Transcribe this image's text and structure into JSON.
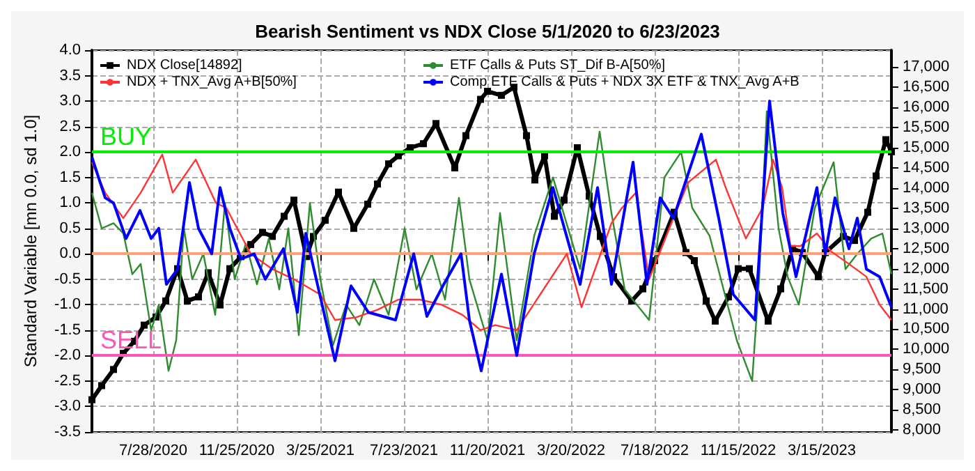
{
  "chart_data": {
    "type": "line",
    "title": "Bearish Sentiment vs NDX Close 5/1/2020 to 6/23/2023",
    "ylabel": "Standard Variable [mn 0.0, sd 1.0]",
    "xlim": [
      "2020-05-01",
      "2023-06-23"
    ],
    "xticks": [
      {
        "value": "2020-07-28",
        "label": "7/28/2020"
      },
      {
        "value": "2020-11-25",
        "label": "11/25/2020"
      },
      {
        "value": "2021-03-25",
        "label": "3/25/2021"
      },
      {
        "value": "2021-07-23",
        "label": "7/23/2021"
      },
      {
        "value": "2021-11-20",
        "label": "11/20/2021"
      },
      {
        "value": "2022-03-20",
        "label": "3/20/2022"
      },
      {
        "value": "2022-07-18",
        "label": "7/18/2022"
      },
      {
        "value": "2022-11-15",
        "label": "11/15/2022"
      },
      {
        "value": "2023-03-15",
        "label": "3/15/2023"
      }
    ],
    "ylim": [
      -3.5,
      4.0
    ],
    "yticks": [
      {
        "value": -3.5,
        "label": "-3.5"
      },
      {
        "value": -3,
        "label": "-3.0"
      },
      {
        "value": -2.5,
        "label": "-2.5"
      },
      {
        "value": -2,
        "label": "-2.0"
      },
      {
        "value": -1.5,
        "label": "-1.5"
      },
      {
        "value": -1,
        "label": "-1.0"
      },
      {
        "value": -0.5,
        "label": "-0.5"
      },
      {
        "value": 0,
        "label": "0.0"
      },
      {
        "value": 0.5,
        "label": "0.5"
      },
      {
        "value": 1,
        "label": "1.0"
      },
      {
        "value": 1.5,
        "label": "1.5"
      },
      {
        "value": 2,
        "label": "2.0"
      },
      {
        "value": 2.5,
        "label": "2.5"
      },
      {
        "value": 3,
        "label": "3.0"
      },
      {
        "value": 3.5,
        "label": "3.5"
      },
      {
        "value": 4,
        "label": "4.0"
      }
    ],
    "y2lim": [
      7950,
      17420
    ],
    "y2ticks": [
      {
        "value": 8000,
        "label": "8,000"
      },
      {
        "value": 8500,
        "label": "8,500"
      },
      {
        "value": 9000,
        "label": "9,000"
      },
      {
        "value": 9500,
        "label": "9,500"
      },
      {
        "value": 10000,
        "label": "10,000"
      },
      {
        "value": 10500,
        "label": "10,500"
      },
      {
        "value": 11000,
        "label": "11,000"
      },
      {
        "value": 11500,
        "label": "11,500"
      },
      {
        "value": 12000,
        "label": "12,000"
      },
      {
        "value": 12500,
        "label": "12,500"
      },
      {
        "value": 13000,
        "label": "13,000"
      },
      {
        "value": 13500,
        "label": "13,500"
      },
      {
        "value": 14000,
        "label": "14,000"
      },
      {
        "value": 14500,
        "label": "14,500"
      },
      {
        "value": 15000,
        "label": "15,000"
      },
      {
        "value": 15500,
        "label": "15,500"
      },
      {
        "value": 16000,
        "label": "16,000"
      },
      {
        "value": 16500,
        "label": "16,500"
      },
      {
        "value": 17000,
        "label": "17,000"
      }
    ],
    "grid": true,
    "legend": "top left",
    "ref_lines": [
      {
        "axis": "y",
        "value": 2,
        "label": "BUY",
        "color": "#00ee00"
      },
      {
        "axis": "y",
        "value": 0,
        "color": "#ffa07a"
      },
      {
        "axis": "y",
        "value": -2,
        "label": "SELL",
        "color": "#ff55bb"
      }
    ],
    "series": [
      {
        "name": "NDX Close[14892]",
        "color": "#000000",
        "axis": "y2",
        "marker": "square",
        "x": [
          "2020-05-01",
          "2020-05-15",
          "2020-06-01",
          "2020-06-15",
          "2020-07-01",
          "2020-07-15",
          "2020-08-01",
          "2020-08-15",
          "2020-09-01",
          "2020-09-15",
          "2020-10-01",
          "2020-10-15",
          "2020-11-01",
          "2020-11-15",
          "2020-12-01",
          "2020-12-15",
          "2021-01-01",
          "2021-01-15",
          "2021-02-01",
          "2021-02-15",
          "2021-03-05",
          "2021-03-15",
          "2021-04-01",
          "2021-04-20",
          "2021-05-12",
          "2021-06-01",
          "2021-06-15",
          "2021-07-01",
          "2021-07-15",
          "2021-08-01",
          "2021-08-20",
          "2021-09-07",
          "2021-10-04",
          "2021-10-20",
          "2021-11-10",
          "2021-11-20",
          "2021-12-10",
          "2021-12-28",
          "2022-01-15",
          "2022-01-27",
          "2022-02-10",
          "2022-02-24",
          "2022-03-10",
          "2022-03-29",
          "2022-04-15",
          "2022-05-01",
          "2022-05-20",
          "2022-06-15",
          "2022-07-01",
          "2022-07-18",
          "2022-08-15",
          "2022-09-01",
          "2022-09-13",
          "2022-09-30",
          "2022-10-13",
          "2022-11-01",
          "2022-11-15",
          "2022-12-01",
          "2022-12-28",
          "2023-01-15",
          "2023-02-01",
          "2023-02-15",
          "2023-03-10",
          "2023-03-20",
          "2023-04-15",
          "2023-05-01",
          "2023-05-20",
          "2023-06-01",
          "2023-06-15",
          "2023-06-23"
        ],
        "values": [
          8750,
          9100,
          9500,
          9900,
          10200,
          10600,
          10800,
          11200,
          12000,
          11200,
          11300,
          11900,
          11100,
          12000,
          12300,
          12600,
          12900,
          12800,
          13300,
          13700,
          12300,
          12800,
          13200,
          13900,
          13000,
          13600,
          14100,
          14600,
          14800,
          15000,
          15100,
          15600,
          14500,
          15300,
          16200,
          16400,
          16300,
          16500,
          15300,
          14200,
          14800,
          13300,
          13700,
          15000,
          13800,
          12800,
          11800,
          11200,
          11500,
          12200,
          13400,
          12400,
          12200,
          11200,
          10700,
          11300,
          12000,
          12000,
          10700,
          11500,
          12500,
          12400,
          11800,
          12400,
          12800,
          12700,
          13400,
          14300,
          15200,
          14900
        ]
      },
      {
        "name": "ETF Calls & Puts ST_Dif B-A[50%]",
        "color": "#2e8b2e",
        "x": [
          "2020-05-01",
          "2020-05-15",
          "2020-06-01",
          "2020-06-15",
          "2020-06-28",
          "2020-07-10",
          "2020-07-25",
          "2020-08-05",
          "2020-08-19",
          "2020-08-30",
          "2020-09-10",
          "2020-09-22",
          "2020-10-08",
          "2020-10-25",
          "2020-11-08",
          "2020-11-22",
          "2020-12-08",
          "2020-12-24",
          "2021-01-10",
          "2021-01-25",
          "2021-02-07",
          "2021-02-22",
          "2021-03-10",
          "2021-03-25",
          "2021-04-12",
          "2021-05-01",
          "2021-05-20",
          "2021-06-10",
          "2021-07-01",
          "2021-07-24",
          "2021-08-10",
          "2021-09-01",
          "2021-09-20",
          "2021-10-10",
          "2021-10-25",
          "2021-11-20",
          "2021-12-08",
          "2022-01-01",
          "2022-01-26",
          "2022-02-22",
          "2022-04-02",
          "2022-04-30",
          "2022-05-17",
          "2022-06-05",
          "2022-07-10",
          "2022-08-01",
          "2022-08-25",
          "2022-09-10",
          "2022-10-05",
          "2022-11-13",
          "2022-12-05",
          "2022-12-15",
          "2022-12-26",
          "2023-01-12",
          "2023-01-25",
          "2023-02-10",
          "2023-03-05",
          "2023-04-01",
          "2023-04-18",
          "2023-05-05",
          "2023-05-25",
          "2023-06-10",
          "2023-06-23"
        ],
        "values": [
          1.2,
          0.5,
          0.6,
          0.4,
          -0.4,
          -0.2,
          -1.5,
          -1.0,
          -2.3,
          -1.7,
          0.5,
          -0.5,
          0.0,
          -1.2,
          1.0,
          -0.5,
          0.2,
          -0.6,
          0.3,
          -0.7,
          0.5,
          -1.6,
          1.0,
          -0.5,
          -1.8,
          -1.0,
          -1.4,
          -0.5,
          -1.2,
          0.5,
          -0.7,
          0.0,
          -0.9,
          1.1,
          -0.5,
          -1.7,
          0.8,
          -1.7,
          0.35,
          1.5,
          -0.3,
          2.4,
          0.8,
          -0.7,
          -1.3,
          1.5,
          2.0,
          0.9,
          0.35,
          -1.7,
          -2.5,
          -0.5,
          2.8,
          0.5,
          -0.45,
          -1.0,
          0.9,
          1.8,
          -0.3,
          0.0,
          0.3,
          0.4,
          -0.4
        ]
      },
      {
        "name": "NDX + TNX_Avg A+B[50%]",
        "color": "#ff3333",
        "x": [
          "2020-05-01",
          "2020-05-20",
          "2020-06-15",
          "2020-07-10",
          "2020-08-10",
          "2020-08-25",
          "2020-09-27",
          "2020-10-26",
          "2020-11-10",
          "2020-12-15",
          "2021-01-15",
          "2021-02-15",
          "2021-03-25",
          "2021-04-15",
          "2021-05-15",
          "2021-06-15",
          "2021-07-15",
          "2021-08-15",
          "2021-09-15",
          "2021-10-15",
          "2021-11-10",
          "2021-12-01",
          "2022-01-01",
          "2022-03-14",
          "2022-04-04",
          "2022-05-17",
          "2022-06-01",
          "2022-06-21",
          "2022-07-10",
          "2022-08-08",
          "2022-09-04",
          "2022-10-14",
          "2022-10-28",
          "2022-11-26",
          "2022-12-20",
          "2023-01-04",
          "2023-01-17",
          "2023-01-29",
          "2023-02-12",
          "2023-03-08",
          "2023-03-28",
          "2023-04-23",
          "2023-05-18",
          "2023-06-06",
          "2023-06-23"
        ],
        "values": [
          1.8,
          1.2,
          0.7,
          1.2,
          1.95,
          1.2,
          1.85,
          1.0,
          0.9,
          0.0,
          -0.3,
          -0.5,
          -0.8,
          -1.3,
          -1.25,
          -1.1,
          -0.9,
          -0.9,
          -1.0,
          -1.2,
          -1.5,
          -1.4,
          -1.5,
          0.0,
          -1.05,
          0.6,
          0.9,
          1.2,
          -0.5,
          0.5,
          1.4,
          1.85,
          1.3,
          0.3,
          0.9,
          1.85,
          1.3,
          0.15,
          0.15,
          0.4,
          0.05,
          -0.2,
          -0.45,
          -1.0,
          -1.3
        ]
      },
      {
        "name": "Comp ETF Calls & Puts + NDX 3X ETF & TNX_Avg A+B",
        "color": "#0000ff",
        "x": [
          "2020-05-01",
          "2020-05-20",
          "2020-06-01",
          "2020-06-19",
          "2020-07-09",
          "2020-07-25",
          "2020-08-05",
          "2020-08-16",
          "2020-09-01",
          "2020-09-18",
          "2020-10-01",
          "2020-10-20",
          "2020-11-01",
          "2020-11-15",
          "2020-12-01",
          "2020-12-20",
          "2021-01-05",
          "2021-01-31",
          "2021-02-20",
          "2021-03-04",
          "2021-04-15",
          "2021-05-08",
          "2021-06-02",
          "2021-07-11",
          "2021-08-06",
          "2021-08-25",
          "2021-09-17",
          "2021-10-13",
          "2021-10-25",
          "2021-11-11",
          "2021-11-23",
          "2021-12-10",
          "2022-01-01",
          "2022-01-26",
          "2022-02-22",
          "2022-04-02",
          "2022-04-27",
          "2022-05-17",
          "2022-06-17",
          "2022-07-07",
          "2022-07-26",
          "2022-08-14",
          "2022-09-23",
          "2022-10-18",
          "2022-11-08",
          "2022-12-09",
          "2022-12-30",
          "2023-01-18",
          "2023-02-06",
          "2023-03-08",
          "2023-03-20",
          "2023-04-03",
          "2023-04-23",
          "2023-05-05",
          "2023-05-18",
          "2023-06-06",
          "2023-06-23"
        ],
        "values": [
          1.9,
          1.1,
          1.0,
          0.3,
          0.85,
          0.3,
          0.5,
          -0.6,
          -0.3,
          1.4,
          0.5,
          0.0,
          1.3,
          0.5,
          -0.1,
          0.0,
          -0.5,
          0.1,
          -1.15,
          0.4,
          -2.1,
          -0.63,
          -1.15,
          -1.3,
          0.0,
          -1.23,
          -0.63,
          0.0,
          -1.3,
          -2.3,
          -1.5,
          -0.4,
          -2.0,
          0.0,
          1.3,
          -0.6,
          1.3,
          -0.6,
          1.8,
          -0.6,
          1.1,
          0.7,
          2.35,
          0.7,
          -0.8,
          -1.3,
          3.0,
          0.8,
          -0.45,
          1.3,
          0.0,
          1.1,
          0.1,
          0.7,
          -0.3,
          -0.45,
          -1.05
        ]
      }
    ]
  }
}
